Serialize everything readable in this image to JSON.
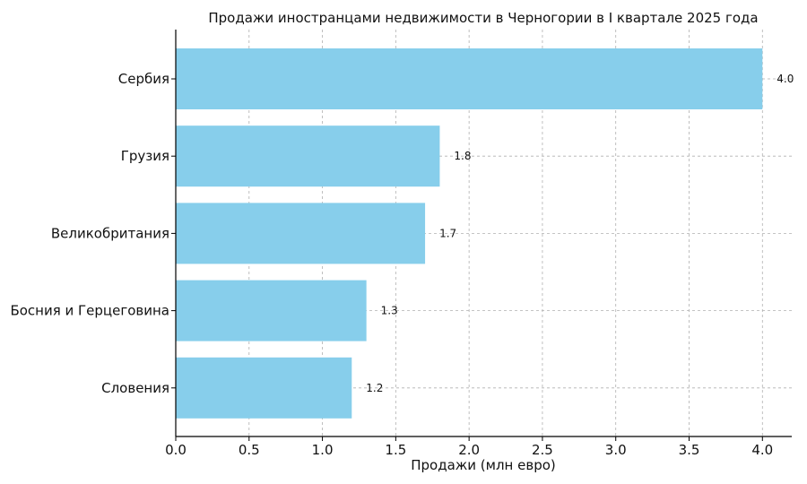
{
  "chart_data": {
    "type": "bar",
    "orientation": "horizontal",
    "title": "Продажи иностранцами недвижимости в Черногории в I квартале 2025 года",
    "xlabel": "Продажи (млн евро)",
    "ylabel": "",
    "categories": [
      "Сербия",
      "Грузия",
      "Великобритания",
      "Босния и Герцеговина",
      "Словения"
    ],
    "values": [
      4.0,
      1.8,
      1.7,
      1.3,
      1.2
    ],
    "data_labels": [
      "4.0",
      "1.8",
      "1.7",
      "1.3",
      "1.2"
    ],
    "xlim": [
      0,
      4.2
    ],
    "xticks": [
      0.0,
      0.5,
      1.0,
      1.5,
      2.0,
      2.5,
      3.0,
      3.5,
      4.0
    ],
    "xtick_labels": [
      "0.0",
      "0.5",
      "1.0",
      "1.5",
      "2.0",
      "2.5",
      "3.0",
      "3.5",
      "4.0"
    ],
    "grid": true,
    "bar_color": "#87ceeb"
  }
}
